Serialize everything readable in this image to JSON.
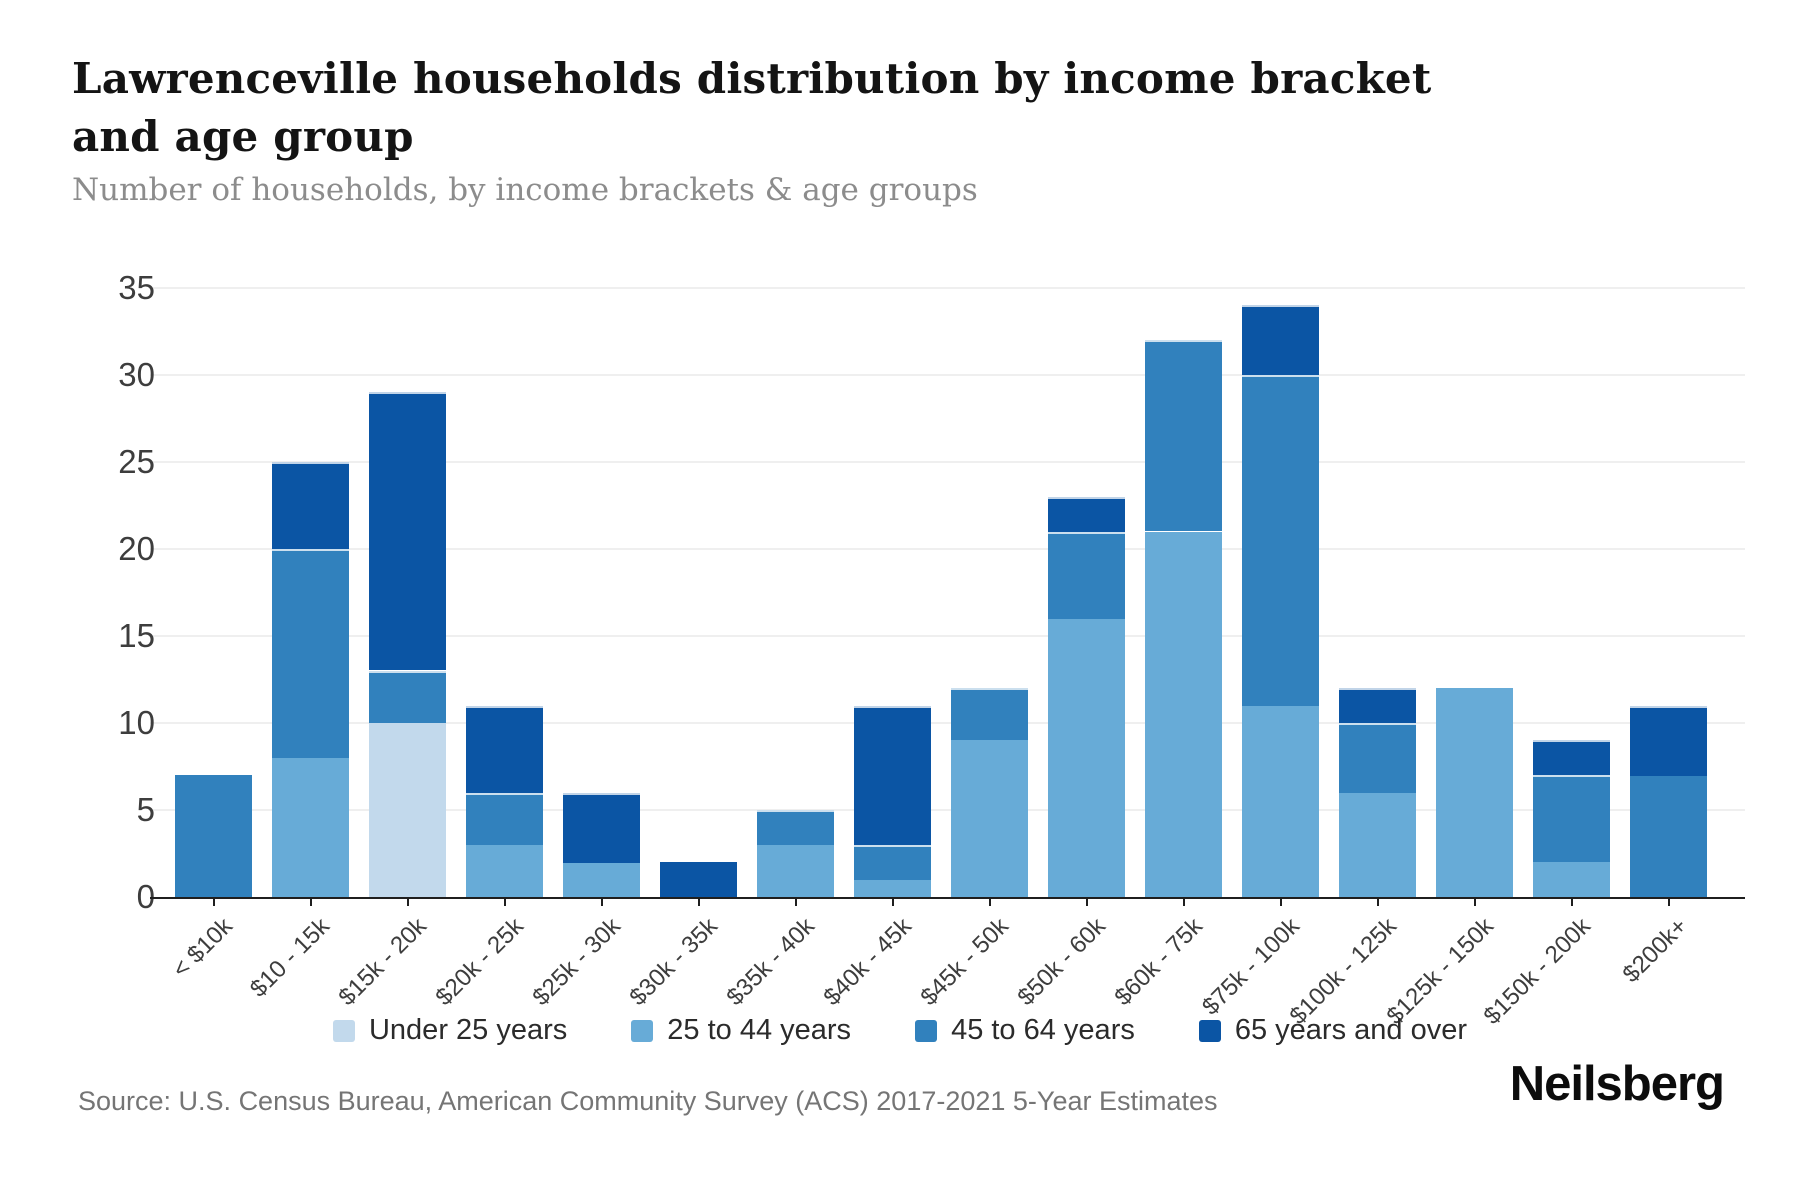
{
  "header": {
    "title": "Lawrenceville households distribution by income bracket and age group",
    "subtitle": "Number of households, by income brackets & age groups"
  },
  "footer": {
    "source": "Source: U.S. Census Bureau, American Community Survey (ACS) 2017-2021 5-Year Estimates",
    "brand": "Neilsberg"
  },
  "chart_data": {
    "type": "bar",
    "stacked": true,
    "title": "Lawrenceville households distribution by income bracket and age group",
    "subtitle": "Number of households, by income brackets & age groups",
    "xlabel": "",
    "ylabel": "",
    "ylim": [
      0,
      35
    ],
    "yticks": [
      0,
      5,
      10,
      15,
      20,
      25,
      30,
      35
    ],
    "grid": "horizontal",
    "legend_position": "bottom",
    "categories": [
      "< $10k",
      "$10 - 15k",
      "$15k - 20k",
      "$20k - 25k",
      "$25k - 30k",
      "$30k - 35k",
      "$35k - 40k",
      "$40k - 45k",
      "$45k - 50k",
      "$50k - 60k",
      "$60k - 75k",
      "$75k - 100k",
      "$100k - 125k",
      "$125k - 150k",
      "$150k - 200k",
      "$200k+"
    ],
    "series": [
      {
        "name": "Under 25 years",
        "color": "#c2d9ec",
        "values": [
          0,
          0,
          10,
          0,
          0,
          0,
          0,
          0,
          0,
          0,
          0,
          0,
          0,
          0,
          0,
          0
        ]
      },
      {
        "name": "25 to 44 years",
        "color": "#67abd7",
        "values": [
          0,
          8,
          0,
          3,
          2,
          0,
          3,
          1,
          9,
          16,
          21,
          11,
          6,
          12,
          2,
          0
        ]
      },
      {
        "name": "45 to 64 years",
        "color": "#3181bd",
        "values": [
          7,
          12,
          3,
          3,
          0,
          0,
          2,
          2,
          3,
          5,
          11,
          19,
          4,
          0,
          5,
          7
        ]
      },
      {
        "name": "65 years and over",
        "color": "#0b55a4",
        "values": [
          0,
          5,
          16,
          5,
          4,
          2,
          0,
          8,
          0,
          2,
          0,
          4,
          2,
          0,
          2,
          4
        ]
      }
    ],
    "totals": [
      7,
      25,
      29,
      11,
      6,
      2,
      5,
      11,
      12,
      23,
      32,
      34,
      12,
      12,
      9,
      11
    ]
  }
}
